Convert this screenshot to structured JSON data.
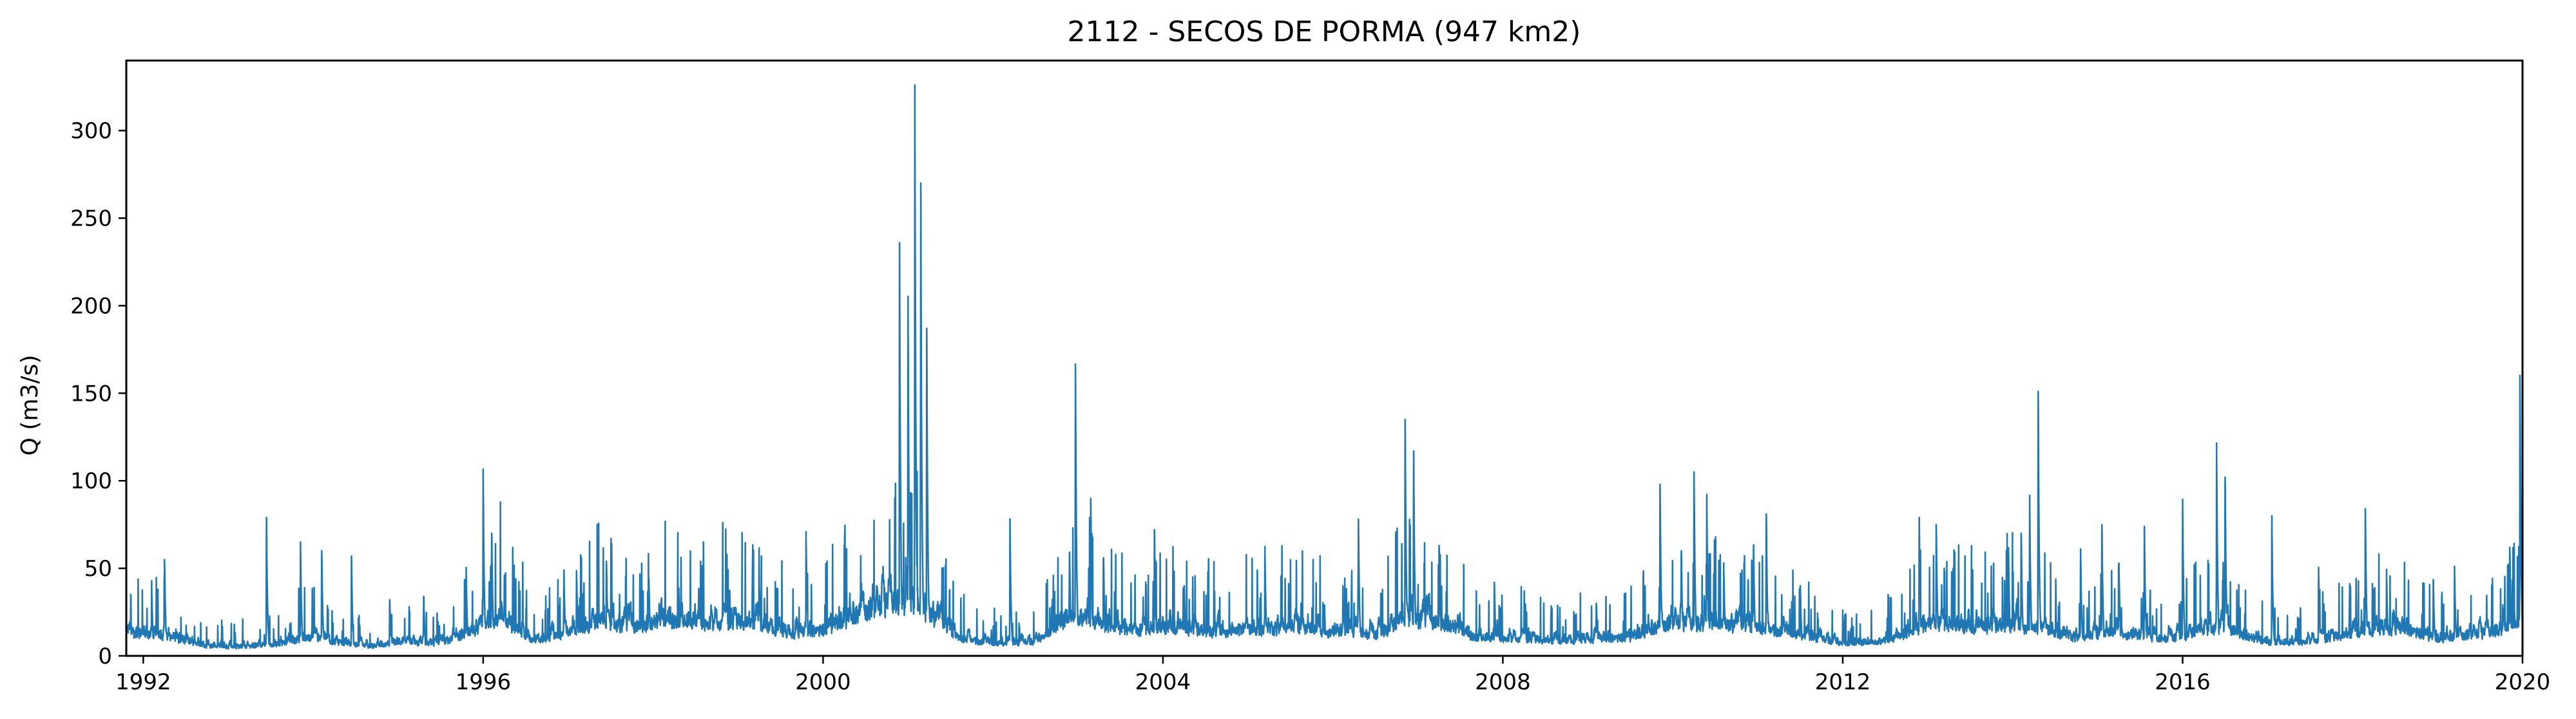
{
  "chart_data": {
    "type": "line",
    "title": "2112 - SECOS DE PORMA (947 km2)",
    "xlabel": "",
    "ylabel": "Q (m3/s)",
    "xlim": [
      1991.8,
      2020.0
    ],
    "ylim": [
      0,
      340
    ],
    "x_ticks": [
      1992,
      1996,
      2000,
      2004,
      2008,
      2012,
      2016,
      2020
    ],
    "y_ticks": [
      0,
      50,
      100,
      150,
      200,
      250,
      300
    ],
    "grid": false,
    "legend": "none",
    "line_color": "#1f77b4",
    "series": [
      {
        "baseflow": [
          [
            1991.8,
            13
          ],
          [
            1992.3,
            11
          ],
          [
            1992.7,
            6
          ],
          [
            1993.0,
            5
          ],
          [
            1993.5,
            6
          ],
          [
            1993.9,
            10
          ],
          [
            1994.3,
            7
          ],
          [
            1994.7,
            5
          ],
          [
            1995.0,
            8
          ],
          [
            1995.5,
            7
          ],
          [
            1995.95,
            14
          ],
          [
            1996.2,
            22
          ],
          [
            1996.6,
            8
          ],
          [
            1996.95,
            12
          ],
          [
            1997.3,
            18
          ],
          [
            1997.8,
            16
          ],
          [
            1998.2,
            20
          ],
          [
            1998.7,
            17
          ],
          [
            1999.2,
            18
          ],
          [
            1999.6,
            12
          ],
          [
            2000.0,
            14
          ],
          [
            2000.4,
            22
          ],
          [
            2000.85,
            30
          ],
          [
            2001.2,
            25
          ],
          [
            2001.6,
            10
          ],
          [
            2002.0,
            7
          ],
          [
            2002.5,
            8
          ],
          [
            2002.9,
            22
          ],
          [
            2003.3,
            18
          ],
          [
            2003.7,
            14
          ],
          [
            2004.1,
            16
          ],
          [
            2004.6,
            13
          ],
          [
            2005.0,
            14
          ],
          [
            2005.5,
            16
          ],
          [
            2006.0,
            13
          ],
          [
            2006.5,
            12
          ],
          [
            2006.9,
            20
          ],
          [
            2007.3,
            18
          ],
          [
            2007.7,
            10
          ],
          [
            2008.2,
            9
          ],
          [
            2008.6,
            8
          ],
          [
            2009.0,
            9
          ],
          [
            2009.5,
            10
          ],
          [
            2010.0,
            18
          ],
          [
            2010.5,
            17
          ],
          [
            2011.0,
            16
          ],
          [
            2011.5,
            12
          ],
          [
            2012.0,
            7
          ],
          [
            2012.5,
            8
          ],
          [
            2013.0,
            18
          ],
          [
            2013.5,
            16
          ],
          [
            2014.0,
            17
          ],
          [
            2014.4,
            14
          ],
          [
            2014.8,
            10
          ],
          [
            2015.2,
            13
          ],
          [
            2015.7,
            9
          ],
          [
            2016.1,
            12
          ],
          [
            2016.5,
            16
          ],
          [
            2016.9,
            8
          ],
          [
            2017.3,
            7
          ],
          [
            2017.7,
            9
          ],
          [
            2018.2,
            14
          ],
          [
            2018.6,
            15
          ],
          [
            2019.0,
            9
          ],
          [
            2019.5,
            12
          ],
          [
            2019.9,
            16
          ],
          [
            2020.0,
            20
          ]
        ],
        "peaks": [
          [
            1992.1,
            34
          ],
          [
            1992.25,
            55
          ],
          [
            1993.45,
            79
          ],
          [
            1993.85,
            65
          ],
          [
            1994.1,
            60
          ],
          [
            1994.45,
            57
          ],
          [
            1994.9,
            32
          ],
          [
            1995.3,
            34
          ],
          [
            1995.8,
            47
          ],
          [
            1996.0,
            102
          ],
          [
            1996.1,
            70
          ],
          [
            1996.25,
            46
          ],
          [
            1996.95,
            48
          ],
          [
            1997.1,
            43
          ],
          [
            1997.45,
            54
          ],
          [
            1997.95,
            41
          ],
          [
            1998.3,
            37
          ],
          [
            1998.9,
            36
          ],
          [
            1999.25,
            38
          ],
          [
            1999.8,
            67
          ],
          [
            2000.25,
            63
          ],
          [
            2000.45,
            41
          ],
          [
            2000.9,
            236
          ],
          [
            2001.0,
            197
          ],
          [
            2001.08,
            326
          ],
          [
            2001.15,
            270
          ],
          [
            2001.22,
            187
          ],
          [
            2002.2,
            76
          ],
          [
            2002.9,
            59
          ],
          [
            2002.97,
            166
          ],
          [
            2003.15,
            89
          ],
          [
            2003.3,
            56
          ],
          [
            2003.9,
            72
          ],
          [
            2004.25,
            40
          ],
          [
            2004.6,
            30
          ],
          [
            2005.2,
            58
          ],
          [
            2005.9,
            28
          ],
          [
            2006.3,
            78
          ],
          [
            2006.85,
            135
          ],
          [
            2006.95,
            117
          ],
          [
            2007.25,
            63
          ],
          [
            2007.9,
            42
          ],
          [
            2008.3,
            15
          ],
          [
            2009.1,
            30
          ],
          [
            2009.85,
            98
          ],
          [
            2010.1,
            60
          ],
          [
            2010.25,
            105
          ],
          [
            2010.4,
            87
          ],
          [
            2010.6,
            48
          ],
          [
            2010.95,
            62
          ],
          [
            2011.1,
            81
          ],
          [
            2011.5,
            40
          ],
          [
            2012.0,
            24
          ],
          [
            2012.9,
            79
          ],
          [
            2013.1,
            75
          ],
          [
            2013.3,
            50
          ],
          [
            2013.95,
            60
          ],
          [
            2014.1,
            70
          ],
          [
            2014.2,
            87
          ],
          [
            2014.3,
            151
          ],
          [
            2014.8,
            58
          ],
          [
            2015.05,
            75
          ],
          [
            2015.25,
            53
          ],
          [
            2015.55,
            74
          ],
          [
            2016.0,
            86
          ],
          [
            2016.4,
            117
          ],
          [
            2016.5,
            102
          ],
          [
            2017.05,
            80
          ],
          [
            2017.6,
            48
          ],
          [
            2018.15,
            84
          ],
          [
            2018.4,
            45
          ],
          [
            2018.95,
            43
          ],
          [
            2019.2,
            48
          ],
          [
            2019.85,
            62
          ],
          [
            2019.97,
            160
          ]
        ]
      }
    ]
  }
}
